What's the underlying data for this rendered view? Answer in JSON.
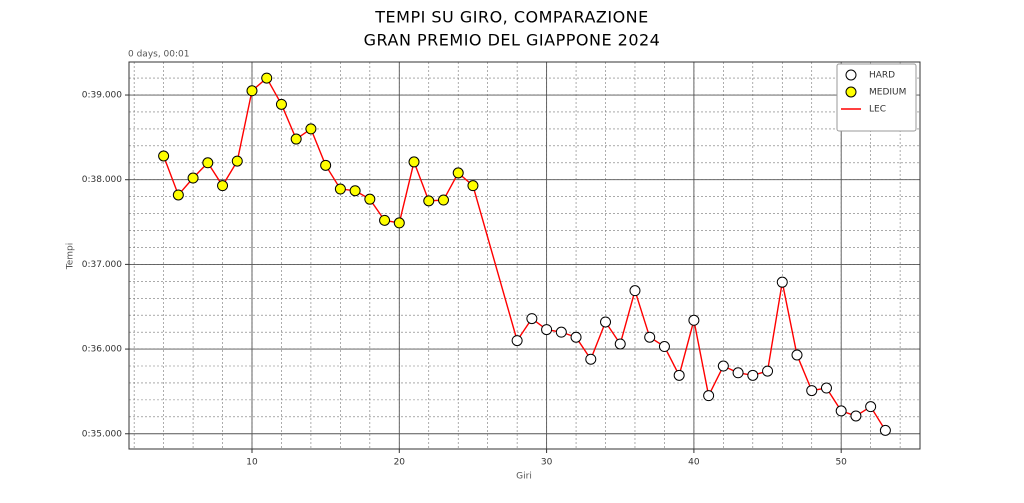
{
  "chart_data": {
    "type": "line",
    "title": [
      "TEMPI SU GIRO, COMPARAZIONE",
      "GRAN PREMIO DEL GIAPPONE 2024"
    ],
    "xlabel": "Giri",
    "ylabel": "Tempi",
    "offset_label": "0 days, 00:01",
    "xlim": [
      1.65,
      55.35
    ],
    "xticks": [
      10,
      20,
      30,
      40,
      50
    ],
    "ylim": [
      34.82,
      39.39
    ],
    "yticks": [
      {
        "value": 35,
        "label": "0:35.000"
      },
      {
        "value": 36,
        "label": "0:36.000"
      },
      {
        "value": 37,
        "label": "0:37.000"
      },
      {
        "value": 38,
        "label": "0:38.000"
      },
      {
        "value": 39,
        "label": "0:39.000"
      }
    ],
    "grid": true,
    "minor_grid": true,
    "legend": "upper right",
    "series": [
      {
        "name": "HARD",
        "style": "markers",
        "color": "#ffffff",
        "x": [
          28,
          29,
          30,
          31,
          32,
          33,
          34,
          35,
          36,
          37,
          38,
          39,
          40,
          41,
          42,
          43,
          44,
          45,
          46,
          47,
          48,
          49,
          50,
          51,
          52,
          53
        ],
        "values": [
          36.1,
          36.36,
          36.23,
          36.2,
          36.14,
          35.88,
          36.32,
          36.06,
          36.69,
          36.14,
          36.03,
          35.69,
          36.34,
          35.45,
          35.8,
          35.72,
          35.69,
          35.74,
          36.79,
          35.93,
          35.51,
          35.54,
          35.27,
          35.21,
          35.32,
          35.04
        ]
      },
      {
        "name": "MEDIUM",
        "style": "markers",
        "color": "#ffff00",
        "x": [
          4,
          5,
          6,
          7,
          8,
          9,
          10,
          11,
          12,
          13,
          14,
          15,
          16,
          17,
          18,
          19,
          20,
          21,
          22,
          23,
          24,
          25
        ],
        "values": [
          38.28,
          37.82,
          38.02,
          38.2,
          37.93,
          38.22,
          39.05,
          39.2,
          38.89,
          38.48,
          38.6,
          38.17,
          37.89,
          37.87,
          37.77,
          37.52,
          37.49,
          38.21,
          37.75,
          37.76,
          38.08,
          37.93
        ]
      },
      {
        "name": "LEC",
        "style": "line",
        "color": "#ff0000",
        "x": [
          4,
          5,
          6,
          7,
          8,
          9,
          10,
          11,
          12,
          13,
          14,
          15,
          16,
          17,
          18,
          19,
          20,
          21,
          22,
          23,
          24,
          25,
          28,
          29,
          30,
          31,
          32,
          33,
          34,
          35,
          36,
          37,
          38,
          39,
          40,
          41,
          42,
          43,
          44,
          45,
          46,
          47,
          48,
          49,
          50,
          51,
          52,
          53
        ],
        "values": [
          38.28,
          37.82,
          38.02,
          38.2,
          37.93,
          38.22,
          39.05,
          39.2,
          38.89,
          38.48,
          38.6,
          38.17,
          37.89,
          37.87,
          37.77,
          37.52,
          37.49,
          38.21,
          37.75,
          37.76,
          38.08,
          37.93,
          36.1,
          36.36,
          36.23,
          36.2,
          36.14,
          35.88,
          36.32,
          36.06,
          36.69,
          36.14,
          36.03,
          35.69,
          36.34,
          35.45,
          35.8,
          35.72,
          35.69,
          35.74,
          36.79,
          35.93,
          35.51,
          35.54,
          35.27,
          35.21,
          35.32,
          35.04
        ]
      }
    ]
  }
}
